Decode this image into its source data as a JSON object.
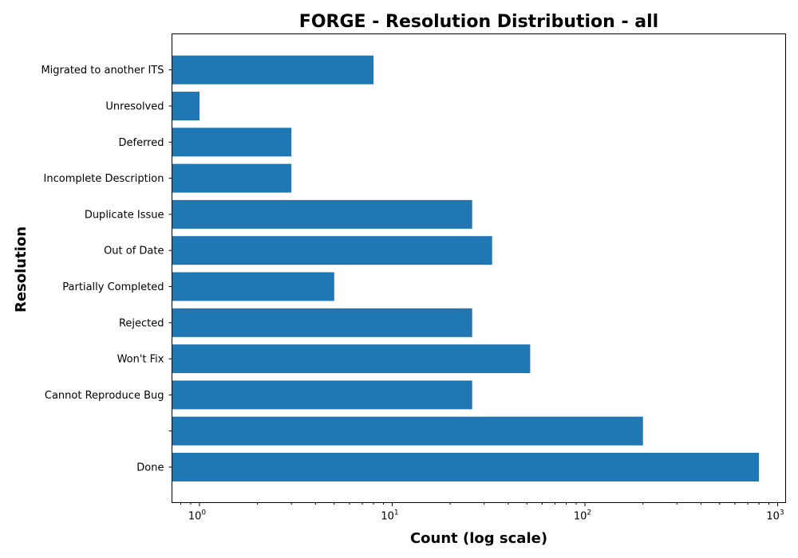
{
  "chart_data": {
    "type": "bar",
    "orientation": "horizontal",
    "title": "FORGE - Resolution Distribution - all",
    "xlabel": "Count (log scale)",
    "ylabel": "Resolution",
    "x_scale": "log",
    "xlim": [
      0.72,
      1100
    ],
    "x_ticks": [
      {
        "base": "10",
        "exp": "0",
        "value": 1
      },
      {
        "base": "10",
        "exp": "1",
        "value": 10
      },
      {
        "base": "10",
        "exp": "2",
        "value": 100
      },
      {
        "base": "10",
        "exp": "3",
        "value": 1000
      }
    ],
    "bar_color": "#1f77b4",
    "grid": false,
    "categories": [
      "Done",
      "",
      "Cannot Reproduce Bug",
      "Won't Fix",
      "Rejected",
      "Partially Completed",
      "Out of Date",
      "Duplicate Issue",
      "Incomplete Description",
      "Deferred",
      "Unresolved",
      "Migrated to another ITS"
    ],
    "values": [
      800,
      200,
      26,
      52,
      26,
      5,
      33,
      26,
      3,
      3,
      1,
      8
    ]
  }
}
